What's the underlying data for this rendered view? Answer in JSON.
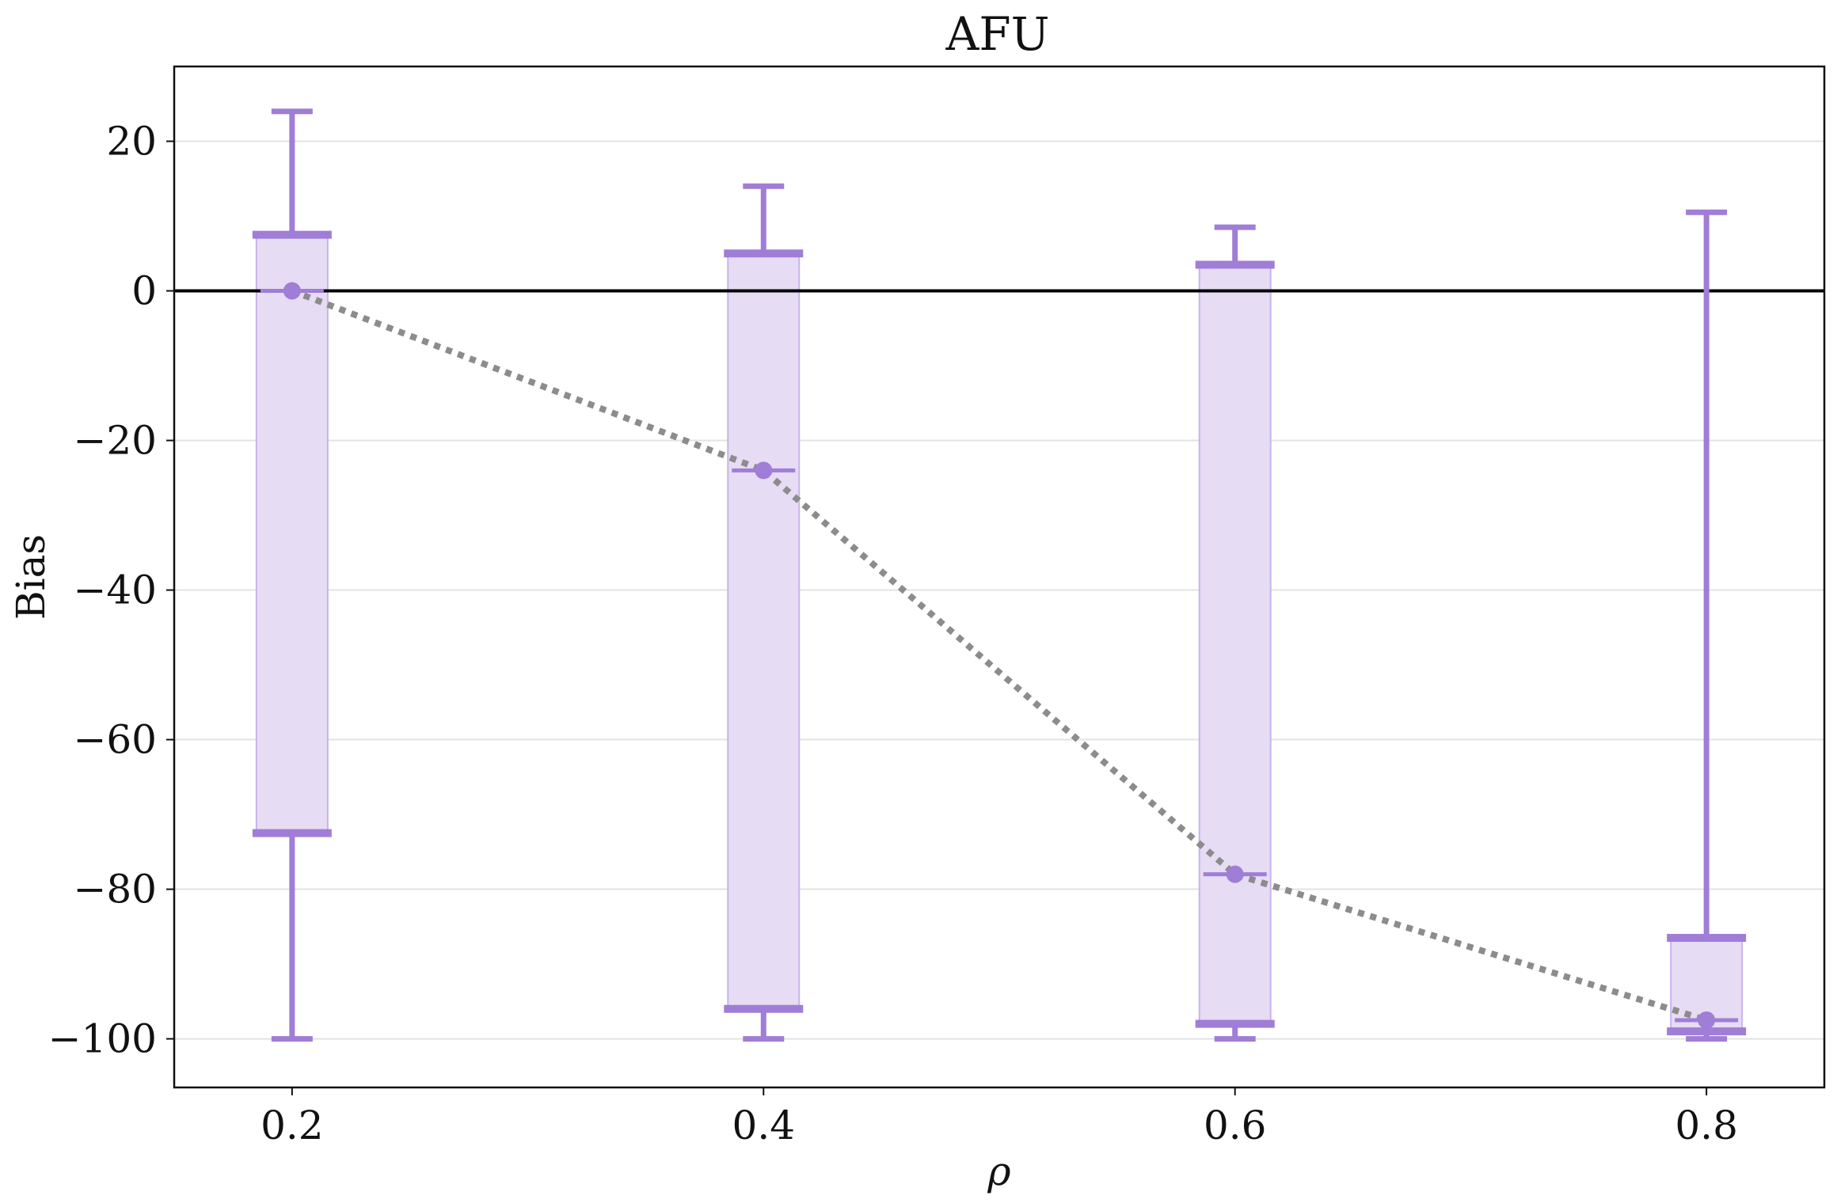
{
  "chart_data": {
    "type": "box",
    "title": "AFU",
    "xlabel": "ρ",
    "ylabel": "Bias",
    "x_tick_labels": [
      "0.2",
      "0.4",
      "0.6",
      "0.8"
    ],
    "y_ticks": [
      20,
      0,
      -20,
      -40,
      -60,
      -80,
      -100
    ],
    "y_tick_labels": [
      "20",
      "0",
      "−20",
      "−40",
      "−60",
      "−80",
      "−100"
    ],
    "xlim": [
      0.15,
      0.85
    ],
    "ylim": [
      -106.5,
      30
    ],
    "grid": "horizontal",
    "reference_line_y": 0,
    "colors": {
      "box_fill": "#e6dcf3",
      "box_edge": "#c9b3ea",
      "whisker": "#a07dd6",
      "mean_line": "#8c8c8c",
      "reference": "#000000",
      "grid": "#e3e3e3"
    },
    "boxes": [
      {
        "x": 0.2,
        "q1": -72.5,
        "q3": 7.5,
        "whisker_low": -100,
        "whisker_high": 24,
        "median": 0,
        "mean": 0
      },
      {
        "x": 0.4,
        "q1": -96,
        "q3": 5,
        "whisker_low": -100,
        "whisker_high": 14,
        "median": -24,
        "mean": -24
      },
      {
        "x": 0.6,
        "q1": -98,
        "q3": 3.5,
        "whisker_low": -100,
        "whisker_high": 8.5,
        "median": -78,
        "mean": -78
      },
      {
        "x": 0.8,
        "q1": -99,
        "q3": -86.5,
        "whisker_low": -100,
        "whisker_high": 10.5,
        "median": -97.5,
        "mean": -97.5
      }
    ]
  }
}
